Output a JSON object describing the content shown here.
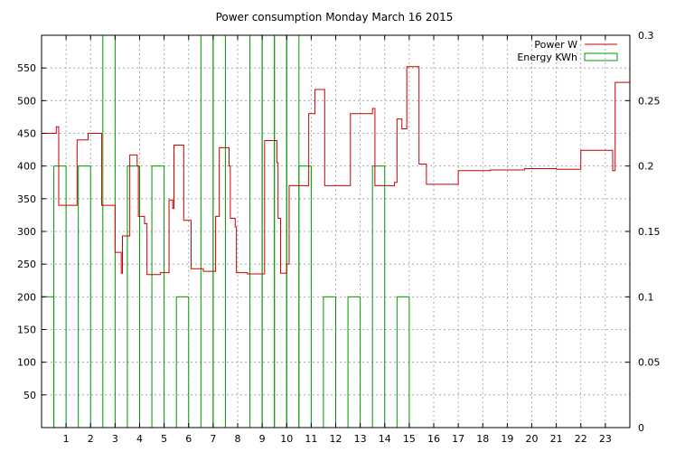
{
  "chart_data": {
    "type": "line",
    "title": "Power consumption Monday March 16 2015",
    "x_ticks": [
      1,
      2,
      3,
      4,
      5,
      6,
      7,
      8,
      9,
      10,
      11,
      12,
      13,
      14,
      15,
      16,
      17,
      18,
      19,
      20,
      21,
      22,
      23
    ],
    "y_left_ticks": [
      50,
      100,
      150,
      200,
      250,
      300,
      350,
      400,
      450,
      500,
      550
    ],
    "y_right_ticks": [
      "0",
      "0.05",
      "0.1",
      "0.15",
      "0.2",
      "0.25",
      "0.3"
    ],
    "xlim": [
      0,
      24
    ],
    "ylim_left": [
      0,
      600
    ],
    "ylim_right": [
      0,
      0.3
    ],
    "grid": true,
    "legend_position": "top-right",
    "colors": {
      "power": "#cc0000",
      "energy": "#009900",
      "grid": "#999999"
    },
    "series": [
      {
        "name": "Power W",
        "axis": "left",
        "style": "step",
        "points": [
          [
            0.0,
            450
          ],
          [
            0.6,
            450
          ],
          [
            0.6,
            460
          ],
          [
            0.7,
            460
          ],
          [
            0.7,
            340
          ],
          [
            1.45,
            340
          ],
          [
            1.45,
            440
          ],
          [
            1.9,
            440
          ],
          [
            1.9,
            450
          ],
          [
            2.45,
            450
          ],
          [
            2.45,
            340
          ],
          [
            3.0,
            340
          ],
          [
            3.0,
            268
          ],
          [
            3.25,
            268
          ],
          [
            3.25,
            236
          ],
          [
            3.3,
            236
          ],
          [
            3.3,
            293
          ],
          [
            3.6,
            293
          ],
          [
            3.6,
            417
          ],
          [
            3.9,
            417
          ],
          [
            3.9,
            400
          ],
          [
            3.95,
            400
          ],
          [
            3.95,
            323
          ],
          [
            4.2,
            323
          ],
          [
            4.2,
            312
          ],
          [
            4.3,
            312
          ],
          [
            4.3,
            234
          ],
          [
            4.85,
            234
          ],
          [
            4.85,
            237
          ],
          [
            5.2,
            237
          ],
          [
            5.2,
            348
          ],
          [
            5.35,
            348
          ],
          [
            5.35,
            335
          ],
          [
            5.4,
            335
          ],
          [
            5.4,
            432
          ],
          [
            5.8,
            432
          ],
          [
            5.8,
            317
          ],
          [
            6.1,
            317
          ],
          [
            6.1,
            243
          ],
          [
            6.6,
            243
          ],
          [
            6.6,
            239
          ],
          [
            7.1,
            239
          ],
          [
            7.1,
            323
          ],
          [
            7.25,
            323
          ],
          [
            7.25,
            428
          ],
          [
            7.65,
            428
          ],
          [
            7.65,
            400
          ],
          [
            7.7,
            400
          ],
          [
            7.7,
            320
          ],
          [
            7.9,
            320
          ],
          [
            7.9,
            307
          ],
          [
            7.95,
            307
          ],
          [
            7.95,
            237
          ],
          [
            8.4,
            237
          ],
          [
            8.4,
            235
          ],
          [
            9.1,
            235
          ],
          [
            9.1,
            439
          ],
          [
            9.6,
            439
          ],
          [
            9.6,
            405
          ],
          [
            9.65,
            405
          ],
          [
            9.65,
            320
          ],
          [
            9.75,
            320
          ],
          [
            9.75,
            236
          ],
          [
            10.0,
            236
          ],
          [
            10.0,
            250
          ],
          [
            10.1,
            250
          ],
          [
            10.1,
            370
          ],
          [
            10.9,
            370
          ],
          [
            10.9,
            480
          ],
          [
            11.15,
            480
          ],
          [
            11.15,
            517
          ],
          [
            11.55,
            517
          ],
          [
            11.55,
            370
          ],
          [
            12.6,
            370
          ],
          [
            12.6,
            480
          ],
          [
            13.5,
            480
          ],
          [
            13.5,
            488
          ],
          [
            13.6,
            488
          ],
          [
            13.6,
            370
          ],
          [
            14.4,
            370
          ],
          [
            14.4,
            375
          ],
          [
            14.5,
            375
          ],
          [
            14.5,
            472
          ],
          [
            14.7,
            472
          ],
          [
            14.7,
            457
          ],
          [
            14.9,
            457
          ],
          [
            14.9,
            552
          ],
          [
            15.4,
            552
          ],
          [
            15.4,
            403
          ],
          [
            15.7,
            403
          ],
          [
            15.7,
            372
          ],
          [
            17.0,
            372
          ],
          [
            17.0,
            393
          ],
          [
            18.3,
            393
          ],
          [
            18.3,
            394
          ],
          [
            19.7,
            394
          ],
          [
            19.7,
            396
          ],
          [
            21.0,
            396
          ],
          [
            21.0,
            395
          ],
          [
            22.0,
            395
          ],
          [
            22.0,
            424
          ],
          [
            23.3,
            424
          ],
          [
            23.3,
            393
          ],
          [
            23.4,
            393
          ],
          [
            23.4,
            528
          ],
          [
            24.0,
            528
          ]
        ]
      },
      {
        "name": "Energy KWh",
        "axis": "right",
        "style": "boxes",
        "bars": [
          [
            0.0,
            0.1
          ],
          [
            0.5,
            0.2
          ],
          [
            1.0,
            0.0
          ],
          [
            1.5,
            0.2
          ],
          [
            2.0,
            0.0
          ],
          [
            2.5,
            0.3
          ],
          [
            3.0,
            0.0
          ],
          [
            3.5,
            0.2
          ],
          [
            4.0,
            0.0
          ],
          [
            4.5,
            0.2
          ],
          [
            5.0,
            0.0
          ],
          [
            5.5,
            0.1
          ],
          [
            6.0,
            0.0
          ],
          [
            6.5,
            0.3
          ],
          [
            7.0,
            0.3
          ],
          [
            7.5,
            0.0
          ],
          [
            8.0,
            0.0
          ],
          [
            8.5,
            0.3
          ],
          [
            9.0,
            0.3
          ],
          [
            9.5,
            0.3
          ],
          [
            10.0,
            0.3
          ],
          [
            10.5,
            0.2
          ],
          [
            11.0,
            0.0
          ],
          [
            11.5,
            0.1
          ],
          [
            12.0,
            0.0
          ],
          [
            12.5,
            0.1
          ],
          [
            13.0,
            0.0
          ],
          [
            13.5,
            0.2
          ],
          [
            14.0,
            0.0
          ],
          [
            14.5,
            0.1
          ],
          [
            15.0,
            0.0
          ],
          [
            15.5,
            0.0
          ],
          [
            16.0,
            0.0
          ],
          [
            16.5,
            0.0
          ],
          [
            17.0,
            0.0
          ],
          [
            17.5,
            0.0
          ],
          [
            18.0,
            0.0
          ],
          [
            18.5,
            0.0
          ],
          [
            19.0,
            0.0
          ],
          [
            19.5,
            0.0
          ],
          [
            20.0,
            0.0
          ],
          [
            20.5,
            0.0
          ],
          [
            21.0,
            0.0
          ],
          [
            21.5,
            0.0
          ],
          [
            22.0,
            0.0
          ],
          [
            22.5,
            0.0
          ],
          [
            23.0,
            0.0
          ],
          [
            23.5,
            0.0
          ]
        ],
        "bar_width": 0.5
      }
    ]
  }
}
